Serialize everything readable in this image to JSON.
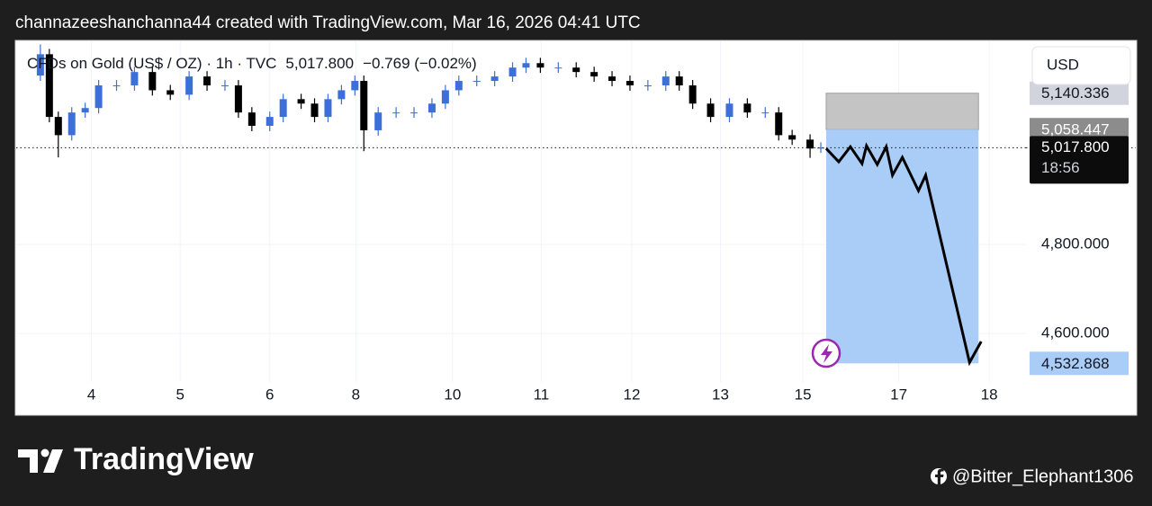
{
  "header": "channazeeshanchanna44 created with TradingView.com, Mar 16, 2026 04:41 UTC",
  "footer": {
    "brand": "TradingView",
    "credit": "@Bitter_Elephant1306"
  },
  "chart_data": {
    "type": "candlestick",
    "symbol": "CFDs on Gold (US$ / OZ) · 1h · TVC",
    "change": "−0.769 (−0.02%)",
    "currency": "USD",
    "up_color": "#3d6fd8",
    "down_color": "#000000",
    "x": [
      -0.57,
      -0.47,
      -0.37,
      -0.22,
      -0.07,
      0.08,
      0.28,
      0.48,
      0.68,
      0.88,
      1.09,
      1.29,
      1.49,
      1.64,
      1.79,
      1.99,
      2.14,
      2.34,
      2.49,
      2.64,
      2.79,
      2.94,
      3.04,
      3.2,
      3.4,
      3.6,
      3.8,
      3.95,
      4.1,
      4.3,
      4.5,
      4.7,
      4.85,
      5.01,
      5.21,
      5.41,
      5.61,
      5.81,
      6.01,
      6.21,
      6.41,
      6.56,
      6.71,
      6.91,
      7.12,
      7.32,
      7.52,
      7.67,
      7.82,
      8.02,
      8.14
    ],
    "open": [
      5180,
      5228,
      5087,
      5046,
      5097,
      5107,
      5158,
      5158,
      5188,
      5147,
      5137,
      5178,
      5158,
      5158,
      5097,
      5067,
      5087,
      5127,
      5117,
      5087,
      5127,
      5147,
      5168,
      5057,
      5097,
      5097,
      5097,
      5117,
      5147,
      5168,
      5168,
      5178,
      5198,
      5208,
      5198,
      5198,
      5188,
      5178,
      5168,
      5158,
      5158,
      5178,
      5158,
      5117,
      5087,
      5117,
      5097,
      5097,
      5046,
      5036,
      5016
    ],
    "high": [
      5250,
      5240,
      5099,
      5109,
      5119,
      5170,
      5170,
      5200,
      5200,
      5159,
      5190,
      5190,
      5170,
      5170,
      5109,
      5099,
      5139,
      5139,
      5129,
      5139,
      5159,
      5180,
      5180,
      5109,
      5109,
      5109,
      5129,
      5159,
      5180,
      5180,
      5190,
      5210,
      5220,
      5220,
      5210,
      5210,
      5200,
      5190,
      5180,
      5170,
      5190,
      5190,
      5170,
      5129,
      5129,
      5129,
      5109,
      5109,
      5058,
      5048,
      5030
    ],
    "low": [
      5168,
      5075,
      4996,
      5034,
      5085,
      5095,
      5146,
      5146,
      5135,
      5125,
      5125,
      5146,
      5146,
      5085,
      5055,
      5055,
      5075,
      5105,
      5075,
      5075,
      5115,
      5135,
      5010,
      5045,
      5085,
      5085,
      5085,
      5105,
      5135,
      5156,
      5156,
      5166,
      5186,
      5186,
      5186,
      5176,
      5166,
      5156,
      5146,
      5146,
      5146,
      5146,
      5105,
      5075,
      5075,
      5085,
      5085,
      5034,
      5024,
      4995,
      5006
    ],
    "close": [
      5228,
      5087,
      5046,
      5097,
      5107,
      5158,
      5158,
      5188,
      5147,
      5137,
      5178,
      5158,
      5158,
      5097,
      5067,
      5087,
      5127,
      5117,
      5087,
      5127,
      5147,
      5168,
      5057,
      5097,
      5097,
      5097,
      5117,
      5147,
      5168,
      5168,
      5178,
      5198,
      5208,
      5198,
      5198,
      5188,
      5178,
      5168,
      5158,
      5158,
      5178,
      5158,
      5117,
      5087,
      5117,
      5097,
      5097,
      5046,
      5036,
      5016,
      5018
    ],
    "xlim": [
      -0.84,
      10.43
    ],
    "xticks": [
      {
        "value": 0,
        "label": "4"
      },
      {
        "value": 0.99,
        "label": "5"
      },
      {
        "value": 1.99,
        "label": "6"
      },
      {
        "value": 2.95,
        "label": "8"
      },
      {
        "value": 4.03,
        "label": "10"
      },
      {
        "value": 5.02,
        "label": "11"
      },
      {
        "value": 6.03,
        "label": "12"
      },
      {
        "value": 7.02,
        "label": "13"
      },
      {
        "value": 7.94,
        "label": "15"
      },
      {
        "value": 9.01,
        "label": "17"
      },
      {
        "value": 10.02,
        "label": "18"
      }
    ],
    "ylim": [
      4491,
      5257
    ],
    "yticks": [
      {
        "value": 4600,
        "label": "4,600.000"
      },
      {
        "value": 4800,
        "label": "4,800.000"
      }
    ],
    "grid": true,
    "current_price": {
      "value": 5017.8,
      "label": "5,017.800"
    },
    "countdown": "18:56",
    "levels": [
      {
        "value": 5140.336,
        "label": "5,140.336"
      },
      {
        "value": 5058.447,
        "label": "5,058.447"
      },
      {
        "value": 4532.868,
        "label": "4,532.868"
      }
    ],
    "box_x": [
      8.2,
      9.9
    ],
    "projection": {
      "color": "#000000",
      "x": [
        8.2,
        8.34,
        8.47,
        8.6,
        8.65,
        8.77,
        8.87,
        8.94,
        9.05,
        9.23,
        9.31,
        9.8,
        9.93
      ],
      "y": [
        5016,
        4986,
        5020,
        4982,
        5022,
        4980,
        5020,
        4956,
        4996,
        4921,
        4956,
        4535,
        4582
      ]
    }
  }
}
